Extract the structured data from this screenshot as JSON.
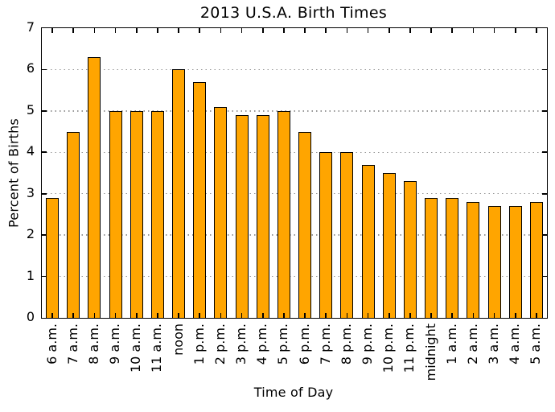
{
  "chart_data": {
    "type": "bar",
    "title": "2013 U.S.A. Birth Times",
    "xlabel": "Time of Day",
    "ylabel": "Percent of Births",
    "categories": [
      "6 a.m.",
      "7 a.m.",
      "8 a.m.",
      "9 a.m.",
      "10 a.m.",
      "11 a.m.",
      "noon",
      "1 p.m.",
      "2 p.m.",
      "3 p.m.",
      "4 p.m.",
      "5 p.m.",
      "6 p.m.",
      "7 p.m.",
      "8 p.m.",
      "9 p.m.",
      "10 p.m.",
      "11 p.m.",
      "midnight",
      "1 a.m.",
      "2 a.m.",
      "3 a.m.",
      "4 a.m.",
      "5 a.m."
    ],
    "values": [
      2.9,
      4.5,
      6.3,
      5.0,
      5.0,
      5.0,
      6.0,
      5.7,
      5.1,
      4.9,
      4.9,
      5.0,
      4.5,
      4.0,
      4.0,
      3.7,
      3.5,
      3.3,
      2.9,
      2.9,
      2.8,
      2.7,
      2.7,
      2.8
    ],
    "ylim": [
      0,
      7
    ],
    "yticks": [
      0,
      1,
      2,
      3,
      4,
      5,
      6,
      7
    ],
    "bar_color": "#FFA500",
    "bar_edge_color": "#000000",
    "gridline_color": "#999999",
    "grid": "horizontal dotted",
    "legend": "none",
    "tick_direction": "in"
  }
}
